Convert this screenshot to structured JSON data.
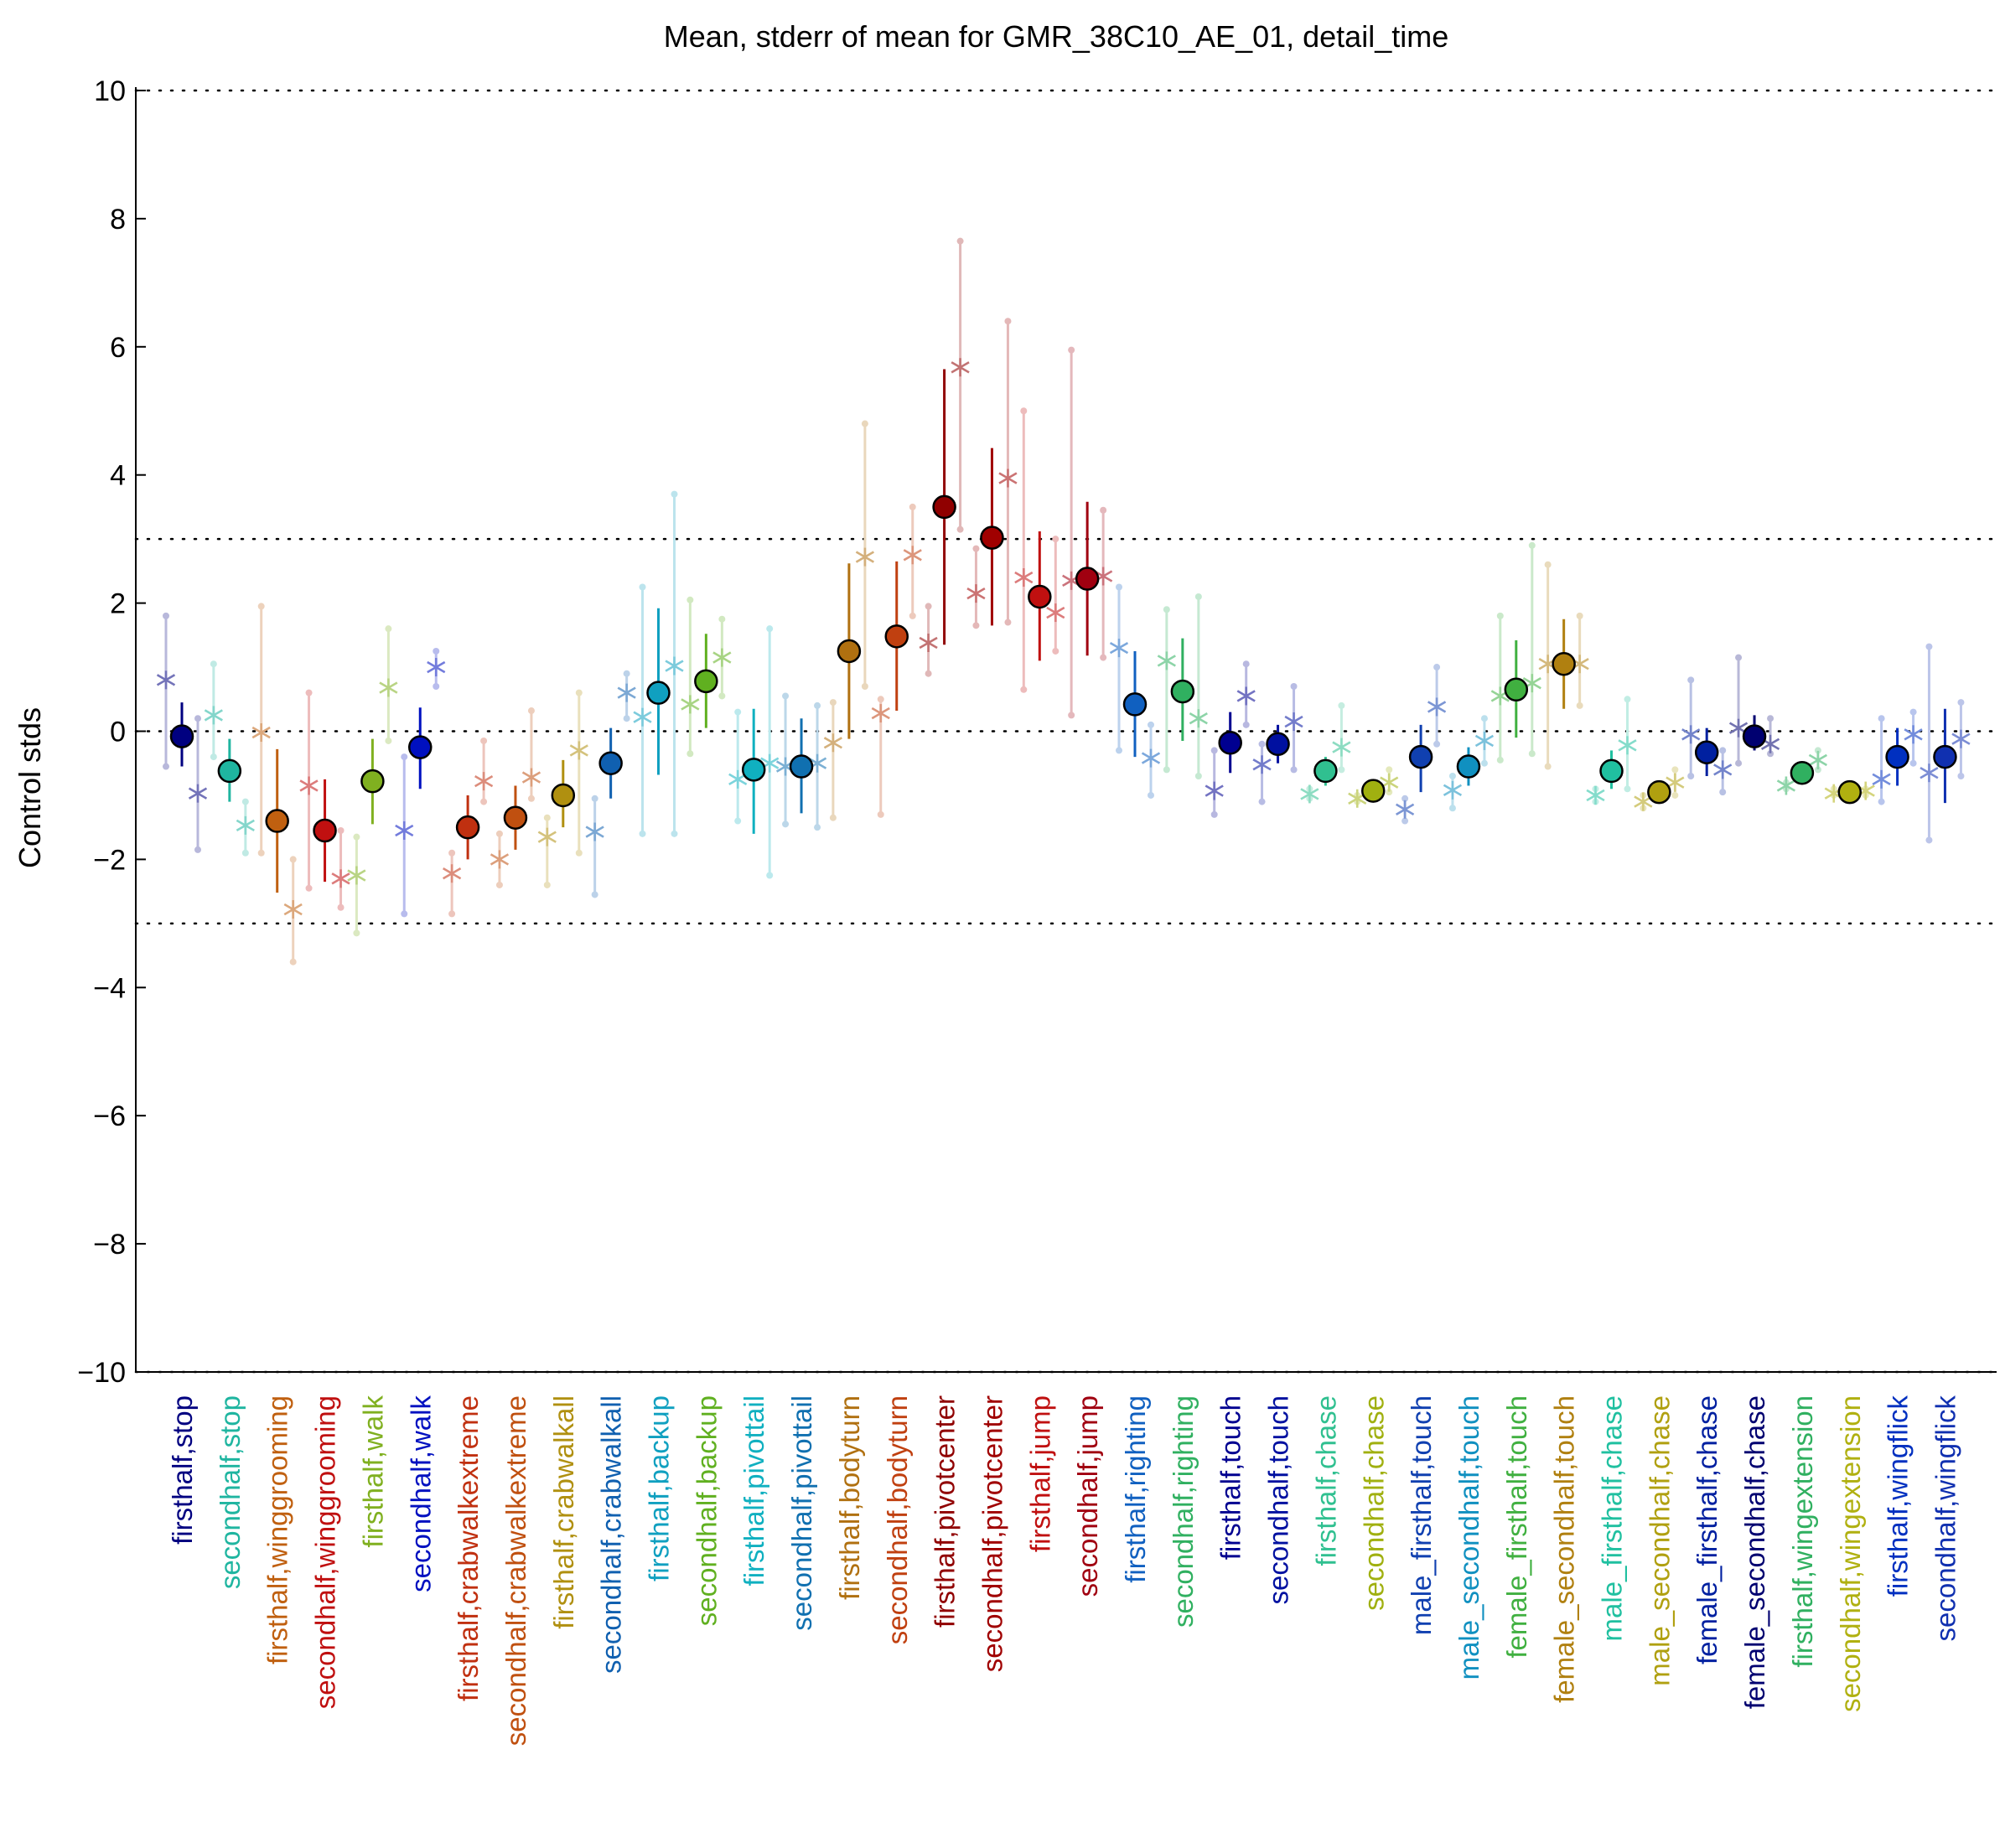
{
  "chart_data": {
    "type": "errorbar",
    "title": "Mean, stderr of mean for GMR_38C10_AE_01, detail_time",
    "ylabel": "Control stds",
    "xlabel": "",
    "ylim": [
      -10,
      10
    ],
    "yticks": [
      -10,
      -8,
      -6,
      -4,
      -2,
      0,
      2,
      4,
      6,
      8,
      10
    ],
    "reference_lines": [
      -10,
      -3,
      0,
      3,
      10
    ],
    "grid": false,
    "legend": "none",
    "categories": [
      {
        "label": "firsthalf,stop",
        "color": "#000080",
        "mean": -0.08,
        "stderr_lo": -0.55,
        "stderr_hi": 0.45,
        "left_star": 0.8,
        "right_star": -0.97,
        "left_range": [
          -0.55,
          1.8
        ],
        "right_range": [
          -1.85,
          0.2
        ]
      },
      {
        "label": "secondhalf,stop",
        "color": "#1fb5a0",
        "mean": -0.62,
        "stderr_lo": -1.1,
        "stderr_hi": -0.12,
        "left_star": 0.25,
        "right_star": -1.47,
        "left_range": [
          -0.4,
          1.05
        ],
        "right_range": [
          -1.9,
          -1.1
        ]
      },
      {
        "label": "firsthalf,winggrooming",
        "color": "#c06010",
        "mean": -1.4,
        "stderr_lo": -2.52,
        "stderr_hi": -0.28,
        "left_star": -0.02,
        "right_star": -2.78,
        "left_range": [
          -1.9,
          1.95
        ],
        "right_range": [
          -3.6,
          -2.0
        ]
      },
      {
        "label": "secondhalf,winggrooming",
        "color": "#c01010",
        "mean": -1.55,
        "stderr_lo": -2.35,
        "stderr_hi": -0.75,
        "left_star": -0.85,
        "right_star": -2.3,
        "left_range": [
          -2.45,
          0.6
        ],
        "right_range": [
          -2.75,
          -1.55
        ]
      },
      {
        "label": "firsthalf,walk",
        "color": "#80b020",
        "mean": -0.78,
        "stderr_lo": -1.45,
        "stderr_hi": -0.12,
        "left_star": -2.25,
        "right_star": 0.68,
        "left_range": [
          -3.15,
          -1.65
        ],
        "right_range": [
          -0.15,
          1.6
        ]
      },
      {
        "label": "secondhalf,walk",
        "color": "#0010c0",
        "mean": -0.25,
        "stderr_lo": -0.9,
        "stderr_hi": 0.37,
        "left_star": -1.55,
        "right_star": 1.0,
        "left_range": [
          -2.85,
          -0.4
        ],
        "right_range": [
          0.7,
          1.25
        ]
      },
      {
        "label": "firsthalf,crabwalkextreme",
        "color": "#c03010",
        "mean": -1.5,
        "stderr_lo": -2.0,
        "stderr_hi": -1.0,
        "left_star": -2.22,
        "right_star": -0.78,
        "left_range": [
          -2.85,
          -1.9
        ],
        "right_range": [
          -1.1,
          -0.15
        ]
      },
      {
        "label": "secondhalf,crabwalkextreme",
        "color": "#c05010",
        "mean": -1.35,
        "stderr_lo": -1.85,
        "stderr_hi": -0.85,
        "left_star": -2.0,
        "right_star": -0.72,
        "left_range": [
          -2.4,
          -1.6
        ],
        "right_range": [
          -1.05,
          0.32
        ]
      },
      {
        "label": "firsthalf,crabwalkall",
        "color": "#b09010",
        "mean": -1.0,
        "stderr_lo": -1.5,
        "stderr_hi": -0.45,
        "left_star": -1.65,
        "right_star": -0.3,
        "left_range": [
          -2.4,
          -1.35
        ],
        "right_range": [
          -1.9,
          0.6
        ]
      },
      {
        "label": "secondhalf,crabwalkall",
        "color": "#1060b0",
        "mean": -0.5,
        "stderr_lo": -1.05,
        "stderr_hi": 0.05,
        "left_star": -1.57,
        "right_star": 0.6,
        "left_range": [
          -2.55,
          -1.05
        ],
        "right_range": [
          0.2,
          0.9
        ]
      },
      {
        "label": "firsthalf,backup",
        "color": "#10a0c0",
        "mean": 0.6,
        "stderr_lo": -0.68,
        "stderr_hi": 1.92,
        "left_star": 0.22,
        "right_star": 1.02,
        "left_range": [
          -1.6,
          2.25
        ],
        "right_range": [
          -1.6,
          3.7
        ]
      },
      {
        "label": "secondhalf,backup",
        "color": "#60b020",
        "mean": 0.78,
        "stderr_lo": 0.05,
        "stderr_hi": 1.52,
        "left_star": 0.42,
        "right_star": 1.15,
        "left_range": [
          -0.35,
          2.05
        ],
        "right_range": [
          0.55,
          1.75
        ]
      },
      {
        "label": "firsthalf,pivottail",
        "color": "#10b0c0",
        "mean": -0.6,
        "stderr_lo": -1.6,
        "stderr_hi": 0.35,
        "left_star": -0.75,
        "right_star": -0.5,
        "left_range": [
          -1.4,
          0.3
        ],
        "right_range": [
          -2.25,
          1.6
        ]
      },
      {
        "label": "secondhalf,pivottail",
        "color": "#1070b0",
        "mean": -0.55,
        "stderr_lo": -1.28,
        "stderr_hi": 0.2,
        "left_star": -0.55,
        "right_star": -0.5,
        "left_range": [
          -1.45,
          0.55
        ],
        "right_range": [
          -1.5,
          0.4
        ]
      },
      {
        "label": "firsthalf,bodyturn",
        "color": "#b07010",
        "mean": 1.25,
        "stderr_lo": -0.12,
        "stderr_hi": 2.62,
        "left_star": -0.18,
        "right_star": 2.72,
        "left_range": [
          -1.35,
          0.45
        ],
        "right_range": [
          0.7,
          4.8
        ]
      },
      {
        "label": "secondhalf,bodyturn",
        "color": "#c04010",
        "mean": 1.48,
        "stderr_lo": 0.32,
        "stderr_hi": 2.65,
        "left_star": 0.28,
        "right_star": 2.75,
        "left_range": [
          -1.3,
          0.5
        ],
        "right_range": [
          1.8,
          3.5
        ]
      },
      {
        "label": "firsthalf,pivotcenter",
        "color": "#900000",
        "mean": 3.5,
        "stderr_lo": 1.35,
        "stderr_hi": 5.65,
        "left_star": 1.38,
        "right_star": 5.68,
        "left_range": [
          0.9,
          1.95
        ],
        "right_range": [
          3.15,
          7.65
        ]
      },
      {
        "label": "secondhalf,pivotcenter",
        "color": "#a00000",
        "mean": 3.02,
        "stderr_lo": 1.65,
        "stderr_hi": 4.42,
        "left_star": 2.15,
        "right_star": 3.95,
        "left_range": [
          1.65,
          2.85
        ],
        "right_range": [
          1.7,
          6.4
        ]
      },
      {
        "label": "firsthalf,jump",
        "color": "#c01010",
        "mean": 2.1,
        "stderr_lo": 1.1,
        "stderr_hi": 3.12,
        "left_star": 2.4,
        "right_star": 1.85,
        "left_range": [
          0.65,
          5.0
        ],
        "right_range": [
          1.25,
          3.0
        ]
      },
      {
        "label": "secondhalf,jump",
        "color": "#a00010",
        "mean": 2.38,
        "stderr_lo": 1.18,
        "stderr_hi": 3.58,
        "left_star": 2.35,
        "right_star": 2.42,
        "left_range": [
          0.25,
          5.95
        ],
        "right_range": [
          1.15,
          3.45
        ]
      },
      {
        "label": "firsthalf,righting",
        "color": "#1060c0",
        "mean": 0.42,
        "stderr_lo": -0.4,
        "stderr_hi": 1.25,
        "left_star": 1.3,
        "right_star": -0.42,
        "left_range": [
          -0.3,
          2.25
        ],
        "right_range": [
          -1.0,
          0.1
        ]
      },
      {
        "label": "secondhalf,righting",
        "color": "#30b060",
        "mean": 0.62,
        "stderr_lo": -0.15,
        "stderr_hi": 1.45,
        "left_star": 1.1,
        "right_star": 0.2,
        "left_range": [
          -0.6,
          1.9
        ],
        "right_range": [
          -0.7,
          2.1
        ]
      },
      {
        "label": "firsthalf,touch",
        "color": "#000090",
        "mean": -0.18,
        "stderr_lo": -0.65,
        "stderr_hi": 0.3,
        "left_star": -0.93,
        "right_star": 0.55,
        "left_range": [
          -1.3,
          -0.3
        ],
        "right_range": [
          0.1,
          1.05
        ]
      },
      {
        "label": "secondhalf,touch",
        "color": "#0010a0",
        "mean": -0.2,
        "stderr_lo": -0.5,
        "stderr_hi": 0.1,
        "left_star": -0.52,
        "right_star": 0.15,
        "left_range": [
          -1.1,
          -0.2
        ],
        "right_range": [
          -0.6,
          0.7
        ]
      },
      {
        "label": "firsthalf,chase",
        "color": "#30c090",
        "mean": -0.62,
        "stderr_lo": -0.85,
        "stderr_hi": -0.4,
        "left_star": -0.98,
        "right_star": -0.25,
        "left_range": [
          -1.05,
          -0.9
        ],
        "right_range": [
          -0.6,
          0.4
        ]
      },
      {
        "label": "secondhalf,chase",
        "color": "#a0b010",
        "mean": -0.93,
        "stderr_lo": -1.0,
        "stderr_hi": -0.85,
        "left_star": -1.05,
        "right_star": -0.8,
        "left_range": [
          -1.1,
          -1.0
        ],
        "right_range": [
          -0.95,
          -0.6
        ]
      },
      {
        "label": "male_firsthalf,touch",
        "color": "#1040b0",
        "mean": -0.4,
        "stderr_lo": -0.95,
        "stderr_hi": 0.1,
        "left_star": -1.22,
        "right_star": 0.38,
        "left_range": [
          -1.4,
          -1.05
        ],
        "right_range": [
          -0.2,
          1.0
        ]
      },
      {
        "label": "male_secondhalf,touch",
        "color": "#1090c0",
        "mean": -0.55,
        "stderr_lo": -0.85,
        "stderr_hi": -0.25,
        "left_star": -0.92,
        "right_star": -0.15,
        "left_range": [
          -1.2,
          -0.7
        ],
        "right_range": [
          -0.5,
          0.2
        ]
      },
      {
        "label": "female_firsthalf,touch",
        "color": "#40b040",
        "mean": 0.65,
        "stderr_lo": -0.1,
        "stderr_hi": 1.42,
        "left_star": 0.55,
        "right_star": 0.75,
        "left_range": [
          -0.45,
          1.8
        ],
        "right_range": [
          -0.35,
          2.9
        ]
      },
      {
        "label": "female_secondhalf,touch",
        "color": "#b08010",
        "mean": 1.05,
        "stderr_lo": 0.35,
        "stderr_hi": 1.75,
        "left_star": 1.05,
        "right_star": 1.05,
        "left_range": [
          -0.55,
          2.6
        ],
        "right_range": [
          0.4,
          1.8
        ]
      },
      {
        "label": "male_firsthalf,chase",
        "color": "#20c0a0",
        "mean": -0.62,
        "stderr_lo": -0.9,
        "stderr_hi": -0.3,
        "left_star": -1.0,
        "right_star": -0.22,
        "left_range": [
          -1.1,
          -0.9
        ],
        "right_range": [
          -0.9,
          0.5
        ]
      },
      {
        "label": "male_secondhalf,chase",
        "color": "#b0a010",
        "mean": -0.95,
        "stderr_lo": -1.05,
        "stderr_hi": -0.85,
        "left_star": -1.1,
        "right_star": -0.8,
        "left_range": [
          -1.2,
          -1.0
        ],
        "right_range": [
          -1.0,
          -0.6
        ]
      },
      {
        "label": "female_firsthalf,chase",
        "color": "#0020a0",
        "mean": -0.33,
        "stderr_lo": -0.7,
        "stderr_hi": 0.05,
        "left_star": -0.05,
        "right_star": -0.6,
        "left_range": [
          -0.7,
          0.8
        ],
        "right_range": [
          -0.95,
          -0.3
        ]
      },
      {
        "label": "female_secondhalf,chase",
        "color": "#000070",
        "mean": -0.08,
        "stderr_lo": -0.3,
        "stderr_hi": 0.25,
        "left_star": 0.05,
        "right_star": -0.2,
        "left_range": [
          -0.5,
          1.15
        ],
        "right_range": [
          -0.35,
          0.2
        ]
      },
      {
        "label": "firsthalf,wingextension",
        "color": "#30b060",
        "mean": -0.65,
        "stderr_lo": -0.8,
        "stderr_hi": -0.5,
        "left_star": -0.85,
        "right_star": -0.45,
        "left_range": [
          -0.9,
          -0.8
        ],
        "right_range": [
          -0.6,
          -0.3
        ]
      },
      {
        "label": "secondhalf,wingextension",
        "color": "#b0b010",
        "mean": -0.95,
        "stderr_lo": -1.0,
        "stderr_hi": -0.9,
        "left_star": -0.97,
        "right_star": -0.93,
        "left_range": [
          -1.0,
          -0.9
        ],
        "right_range": [
          -1.0,
          -0.9
        ]
      },
      {
        "label": "firsthalf,wingflick",
        "color": "#0030c0",
        "mean": -0.4,
        "stderr_lo": -0.85,
        "stderr_hi": 0.05,
        "left_star": -0.75,
        "right_star": -0.05,
        "left_range": [
          -1.1,
          0.2
        ],
        "right_range": [
          -0.5,
          0.3
        ]
      },
      {
        "label": "secondhalf,wingflick",
        "color": "#1030b0",
        "mean": -0.4,
        "stderr_lo": -1.12,
        "stderr_hi": 0.35,
        "left_star": -0.65,
        "right_star": -0.12,
        "left_range": [
          -1.7,
          1.32
        ],
        "right_range": [
          -0.7,
          0.45
        ]
      }
    ]
  }
}
